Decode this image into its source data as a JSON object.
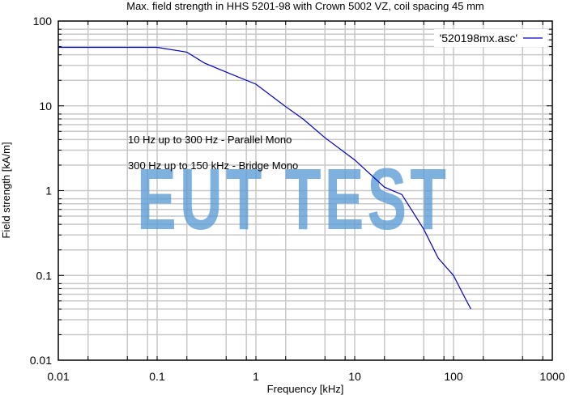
{
  "chart_data": {
    "type": "line",
    "title": "Max. field strength in HHS 5201-98 with Crown 5002 VZ, coil spacing 45 mm",
    "xlabel": "Frequency [kHz]",
    "ylabel": "Field strength [kA/m]",
    "xscale": "log",
    "yscale": "log",
    "xlim": [
      0.01,
      1000
    ],
    "ylim": [
      0.01,
      100
    ],
    "x_ticks": [
      "0.01",
      "0.1",
      "1",
      "10",
      "100",
      "1000"
    ],
    "y_ticks": [
      "0.01",
      "0.1",
      "1",
      "10",
      "100"
    ],
    "grid": true,
    "legend_position": "top-right",
    "series": [
      {
        "name": "'520198mx.asc'",
        "color": "#0000c0",
        "x": [
          0.01,
          0.1,
          0.2,
          0.3,
          0.5,
          1,
          2,
          3,
          5,
          10,
          20,
          30,
          50,
          70,
          100,
          125,
          150
        ],
        "values": [
          49,
          49,
          43,
          32,
          25,
          18,
          9.8,
          7,
          4.2,
          2.3,
          1.1,
          0.9,
          0.35,
          0.16,
          0.1,
          0.06,
          0.04
        ]
      }
    ],
    "annotations": [
      "10 Hz up to 300 Hz - Parallel Mono",
      "300 Hz up to 150 kHz - Bridge Mono"
    ],
    "watermark": "EUT TEST"
  },
  "colors": {
    "series": "#0000c0",
    "grid": "#c8c8c8",
    "watermark": "#5b9bd5"
  }
}
